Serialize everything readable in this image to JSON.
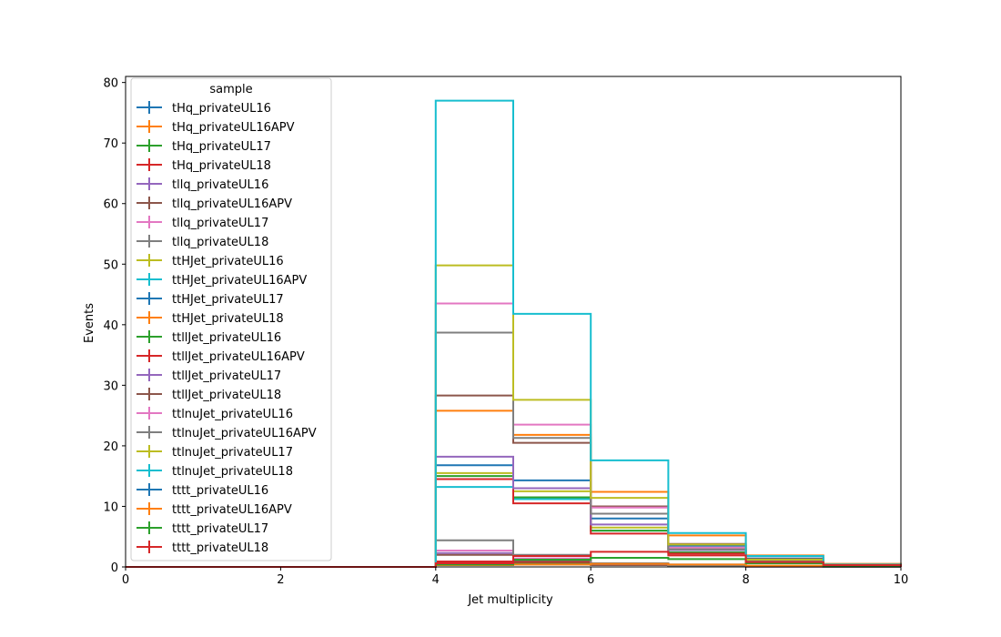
{
  "chart_data": {
    "type": "histogram-step",
    "title": "",
    "xlabel": "Jet multiplicity",
    "ylabel": "Events",
    "xlim": [
      0,
      10
    ],
    "ylim": [
      0,
      81
    ],
    "xticks": [
      0,
      2,
      4,
      6,
      8,
      10
    ],
    "yticks": [
      0,
      10,
      20,
      30,
      40,
      50,
      60,
      70,
      80
    ],
    "bin_edges": [
      0,
      1,
      2,
      3,
      4,
      5,
      6,
      7,
      8,
      9,
      10
    ],
    "grid": false,
    "legend": {
      "title": "sample",
      "placement": "upper-left"
    },
    "series": [
      {
        "name": "tHq_privateUL16",
        "color": "#1f77b4",
        "values": [
          0,
          0,
          0,
          0,
          0.6,
          0.5,
          0.4,
          0.2,
          0.1,
          0.05
        ]
      },
      {
        "name": "tHq_privateUL16APV",
        "color": "#ff7f0e",
        "values": [
          0,
          0,
          0,
          0,
          0.5,
          0.45,
          0.35,
          0.2,
          0.1,
          0.05
        ]
      },
      {
        "name": "tHq_privateUL17",
        "color": "#2ca02c",
        "values": [
          0,
          0,
          0,
          0,
          0.7,
          0.6,
          0.45,
          0.25,
          0.1,
          0.05
        ]
      },
      {
        "name": "tHq_privateUL18",
        "color": "#d62728",
        "values": [
          0,
          0,
          0,
          0,
          0.9,
          0.8,
          0.6,
          0.3,
          0.15,
          0.05
        ]
      },
      {
        "name": "tllq_privateUL16",
        "color": "#9467bd",
        "values": [
          0,
          0,
          0,
          0,
          2.3,
          1.2,
          0.4,
          0.1,
          0.05,
          0
        ]
      },
      {
        "name": "tllq_privateUL16APV",
        "color": "#8c564b",
        "values": [
          0,
          0,
          0,
          0,
          2.0,
          1.0,
          0.3,
          0.1,
          0.05,
          0
        ]
      },
      {
        "name": "tllq_privateUL17",
        "color": "#e377c2",
        "values": [
          0,
          0,
          0,
          0,
          2.7,
          1.4,
          0.5,
          0.15,
          0.05,
          0
        ]
      },
      {
        "name": "tllq_privateUL18",
        "color": "#7f7f7f",
        "values": [
          0,
          0,
          0,
          0,
          4.4,
          2.0,
          0.6,
          0.2,
          0.05,
          0
        ]
      },
      {
        "name": "ttHJet_privateUL16",
        "color": "#bcbd22",
        "values": [
          0,
          0,
          0,
          0,
          15.5,
          12.5,
          6.5,
          3.0,
          1.1,
          0.3
        ]
      },
      {
        "name": "ttHJet_privateUL16APV",
        "color": "#17becf",
        "values": [
          0,
          0,
          0,
          0,
          13.2,
          11.2,
          6.0,
          2.8,
          1.0,
          0.3
        ]
      },
      {
        "name": "ttHJet_privateUL17",
        "color": "#1f77b4",
        "values": [
          0,
          0,
          0,
          0,
          16.8,
          14.3,
          8.0,
          3.5,
          1.4,
          0.4
        ]
      },
      {
        "name": "ttHJet_privateUL18",
        "color": "#ff7f0e",
        "values": [
          0,
          0,
          0,
          0,
          25.8,
          21.8,
          12.4,
          5.2,
          1.9,
          0.5
        ]
      },
      {
        "name": "ttllJet_privateUL16",
        "color": "#2ca02c",
        "values": [
          0,
          0,
          0,
          0,
          15.0,
          11.5,
          6.0,
          2.4,
          0.8,
          0.2
        ]
      },
      {
        "name": "ttllJet_privateUL16APV",
        "color": "#d62728",
        "values": [
          0,
          0,
          0,
          0,
          14.5,
          10.5,
          5.5,
          2.2,
          0.7,
          0.2
        ]
      },
      {
        "name": "ttllJet_privateUL17",
        "color": "#9467bd",
        "values": [
          0,
          0,
          0,
          0,
          18.2,
          13.0,
          7.0,
          2.8,
          0.9,
          0.2
        ]
      },
      {
        "name": "ttllJet_privateUL18",
        "color": "#8c564b",
        "values": [
          0,
          0,
          0,
          0,
          28.3,
          20.5,
          10.0,
          3.8,
          1.3,
          0.3
        ]
      },
      {
        "name": "ttlnuJet_privateUL16",
        "color": "#e377c2",
        "values": [
          0,
          0,
          0,
          0,
          43.5,
          23.5,
          9.8,
          3.2,
          1.0,
          0.2
        ]
      },
      {
        "name": "ttlnuJet_privateUL16APV",
        "color": "#7f7f7f",
        "values": [
          0,
          0,
          0,
          0,
          38.7,
          21.3,
          8.8,
          2.9,
          0.9,
          0.2
        ]
      },
      {
        "name": "ttlnuJet_privateUL17",
        "color": "#bcbd22",
        "values": [
          0,
          0,
          0,
          0,
          49.8,
          27.6,
          11.4,
          3.7,
          1.2,
          0.3
        ]
      },
      {
        "name": "ttlnuJet_privateUL18",
        "color": "#17becf",
        "values": [
          0,
          0,
          0,
          0,
          77.0,
          41.8,
          17.6,
          5.6,
          1.8,
          0.4
        ]
      },
      {
        "name": "tttt_privateUL16",
        "color": "#1f77b4",
        "values": [
          0,
          0,
          0,
          0,
          0.3,
          0.4,
          0.5,
          0.4,
          0.2,
          0.1
        ]
      },
      {
        "name": "tttt_privateUL16APV",
        "color": "#ff7f0e",
        "values": [
          0,
          0,
          0,
          0,
          0.3,
          0.4,
          0.5,
          0.4,
          0.2,
          0.1
        ]
      },
      {
        "name": "tttt_privateUL17",
        "color": "#2ca02c",
        "values": [
          0,
          0,
          0,
          0,
          0.4,
          1.2,
          1.5,
          1.3,
          0.6,
          0.2
        ]
      },
      {
        "name": "tttt_privateUL18",
        "color": "#d62728",
        "values": [
          0,
          0,
          0,
          0,
          0.6,
          1.8,
          2.5,
          1.9,
          0.8,
          0.3
        ]
      }
    ]
  }
}
